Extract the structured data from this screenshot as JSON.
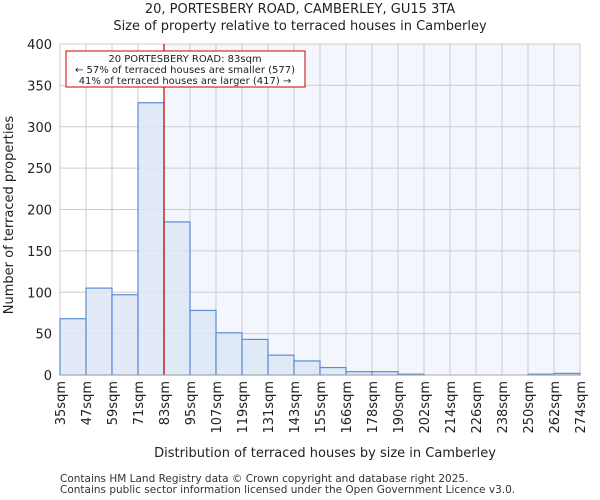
{
  "chart_data": {
    "type": "bar",
    "title": "20, PORTESBERY ROAD, CAMBERLEY, GU15 3TA",
    "subtitle": "Size of property relative to terraced houses in Camberley",
    "xlabel": "Distribution of terraced houses by size in Camberley",
    "ylabel": "Number of terraced properties",
    "ylim": [
      0,
      400
    ],
    "yticks": [
      0,
      50,
      100,
      150,
      200,
      250,
      300,
      350,
      400
    ],
    "bin_edges_labels": [
      "35sqm",
      "47sqm",
      "59sqm",
      "71sqm",
      "83sqm",
      "95sqm",
      "107sqm",
      "119sqm",
      "131sqm",
      "143sqm",
      "155sqm",
      "166sqm",
      "178sqm",
      "190sqm",
      "202sqm",
      "214sqm",
      "226sqm",
      "238sqm",
      "250sqm",
      "262sqm",
      "274sqm"
    ],
    "values": [
      68,
      105,
      97,
      329,
      185,
      78,
      51,
      43,
      24,
      17,
      9,
      4,
      4,
      1,
      0,
      0,
      0,
      0,
      1,
      2
    ],
    "marker_bin_index": 4,
    "annotation": [
      "20 PORTESBERY ROAD: 83sqm",
      "← 57% of terraced houses are smaller (577)",
      "41% of terraced houses are larger (417) →"
    ],
    "colors": {
      "bar": "#dce6f4",
      "bar_edge": "#5b8dd6",
      "marker": "#cc0000",
      "grid": "#cccccc",
      "bg_right": "#f3f6fc"
    }
  },
  "footer": [
    "Contains HM Land Registry data © Crown copyright and database right 2025.",
    "Contains public sector information licensed under the Open Government Licence v3.0."
  ]
}
